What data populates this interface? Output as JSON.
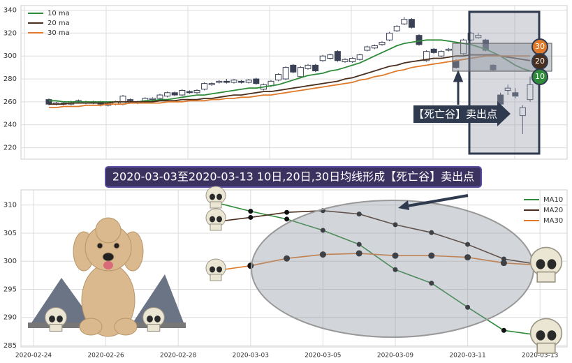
{
  "chart_data": [
    {
      "type": "candlestick",
      "open": [
        262,
        258,
        259,
        258,
        261,
        259,
        260,
        260,
        257,
        258,
        258,
        262,
        259,
        260,
        262,
        263,
        265,
        268,
        266,
        269,
        268,
        271,
        275,
        277,
        278,
        277,
        278,
        277,
        280,
        271,
        274,
        279,
        280,
        292,
        282,
        289,
        292,
        296,
        298,
        304,
        295,
        295,
        297,
        305,
        307,
        310,
        314,
        322,
        328,
        332,
        318,
        296,
        306,
        300,
        305,
        296,
        302,
        314,
        316,
        314,
        292,
        266,
        270,
        268,
        248,
        262
      ],
      "high": [
        263,
        260,
        260,
        261,
        262,
        261,
        261,
        261,
        260,
        261,
        266,
        263,
        261,
        264,
        264,
        267,
        269,
        269,
        271,
        270,
        271,
        277,
        277,
        279,
        280,
        280,
        279,
        280,
        281,
        276,
        279,
        285,
        291,
        293,
        291,
        293,
        293,
        301,
        302,
        305,
        298,
        299,
        302,
        309,
        310,
        313,
        321,
        327,
        334,
        333,
        319,
        305,
        307,
        305,
        307,
        297,
        315,
        321,
        320,
        315,
        293,
        268,
        275,
        272,
        257,
        282
      ],
      "low": [
        257,
        257,
        257,
        257,
        259,
        258,
        258,
        256,
        256,
        257,
        257,
        260,
        258,
        259,
        261,
        262,
        264,
        265,
        265,
        267,
        267,
        270,
        274,
        276,
        276,
        276,
        276,
        276,
        275,
        270,
        273,
        278,
        279,
        285,
        281,
        288,
        286,
        295,
        297,
        295,
        294,
        294,
        296,
        304,
        306,
        309,
        313,
        321,
        327,
        324,
        309,
        295,
        302,
        299,
        304,
        289,
        301,
        313,
        315,
        304,
        287,
        256,
        266,
        263,
        232,
        260
      ],
      "close": [
        258,
        259,
        258,
        260,
        260,
        260,
        259,
        258,
        259,
        260,
        265,
        261,
        260,
        263,
        263,
        266,
        268,
        266,
        270,
        268,
        270,
        276,
        276,
        278,
        277,
        279,
        277,
        279,
        276,
        275,
        278,
        284,
        290,
        286,
        290,
        292,
        287,
        300,
        301,
        296,
        297,
        298,
        301,
        308,
        309,
        312,
        320,
        326,
        332,
        325,
        310,
        304,
        303,
        304,
        306,
        290,
        314,
        320,
        318,
        305,
        288,
        258,
        272,
        265,
        255,
        275
      ],
      "series": [
        {
          "name": "10 ma",
          "color": "#2e8b3a",
          "values": [
            261,
            261,
            260,
            260,
            260,
            260,
            260,
            260,
            260,
            260,
            260,
            260,
            260,
            261,
            261,
            262,
            262,
            263,
            264,
            265,
            266,
            266,
            267,
            268,
            269,
            270,
            271,
            272,
            272,
            273,
            274,
            275,
            277,
            279,
            281,
            283,
            284,
            285,
            287,
            288,
            290,
            292,
            294,
            297,
            300,
            303,
            306,
            309,
            311,
            312,
            313,
            314,
            314,
            314,
            313,
            312,
            311,
            310,
            308,
            306,
            303,
            300,
            296,
            292,
            289,
            287
          ]
        },
        {
          "name": "20 ma",
          "color": "#4a2e1e",
          "values": [
            258,
            258,
            258,
            259,
            259,
            259,
            259,
            259,
            259,
            260,
            260,
            260,
            260,
            260,
            260,
            261,
            261,
            261,
            262,
            262,
            262,
            263,
            263,
            264,
            265,
            266,
            266,
            267,
            268,
            269,
            269,
            270,
            271,
            272,
            273,
            274,
            275,
            276,
            277,
            278,
            280,
            281,
            283,
            285,
            287,
            289,
            291,
            292,
            294,
            295,
            296,
            297,
            298,
            298,
            299,
            300,
            300,
            301,
            301,
            301,
            301,
            300,
            299,
            298,
            297,
            296
          ]
        },
        {
          "name": "30 ma",
          "color": "#e07a2a",
          "values": [
            255,
            255,
            256,
            256,
            256,
            257,
            257,
            257,
            258,
            258,
            258,
            259,
            259,
            259,
            259,
            259,
            260,
            260,
            260,
            261,
            261,
            261,
            262,
            262,
            263,
            263,
            264,
            264,
            265,
            266,
            266,
            267,
            268,
            269,
            270,
            271,
            272,
            273,
            274,
            275,
            276,
            277,
            279,
            280,
            282,
            283,
            285,
            287,
            288,
            290,
            291,
            292,
            293,
            294,
            295,
            296,
            297,
            298,
            299,
            300,
            300,
            300,
            300,
            300,
            300,
            300
          ]
        }
      ],
      "ylim": [
        210,
        344
      ],
      "yticks": [
        220,
        240,
        260,
        280,
        300,
        320,
        340
      ],
      "grid": true,
      "legend": "upper left",
      "annotation": "【死亡谷】卖出点",
      "end_labels": [
        "30",
        "20",
        "10"
      ]
    },
    {
      "type": "line",
      "title": "2020-03-03至2020-03-13 10日,20日,30日均线形成【死亡谷】卖出点",
      "categories": [
        "2020-02-24",
        null,
        "2020-02-26",
        null,
        "2020-02-28",
        null,
        "2020-03-03",
        null,
        "2020-03-05",
        null,
        "2020-03-09",
        null,
        "2020-03-11",
        null,
        "2020-03-13"
      ],
      "series": [
        {
          "name": "MA10",
          "color": "#2e8b3a",
          "values": [
            null,
            null,
            null,
            null,
            null,
            310.5,
            308.9,
            307.5,
            305.5,
            303,
            298.5,
            296.1,
            291.8,
            287.7,
            286.8
          ]
        },
        {
          "name": "MA20",
          "color": "#4a2e1e",
          "values": [
            null,
            null,
            null,
            null,
            null,
            307,
            307.8,
            308.7,
            309,
            308.4,
            306.5,
            305.1,
            303,
            300.4,
            299.4
          ]
        },
        {
          "name": "MA30",
          "color": "#e07a2a",
          "values": [
            null,
            null,
            null,
            null,
            null,
            298.3,
            299.2,
            300.5,
            301.2,
            301.4,
            301,
            301,
            300.7,
            299.7,
            299.3
          ]
        }
      ],
      "ylim": [
        284.75,
        312.7
      ],
      "yticks": [
        285,
        290,
        295,
        300,
        305,
        310
      ],
      "grid": true,
      "legend": "upper right"
    }
  ]
}
